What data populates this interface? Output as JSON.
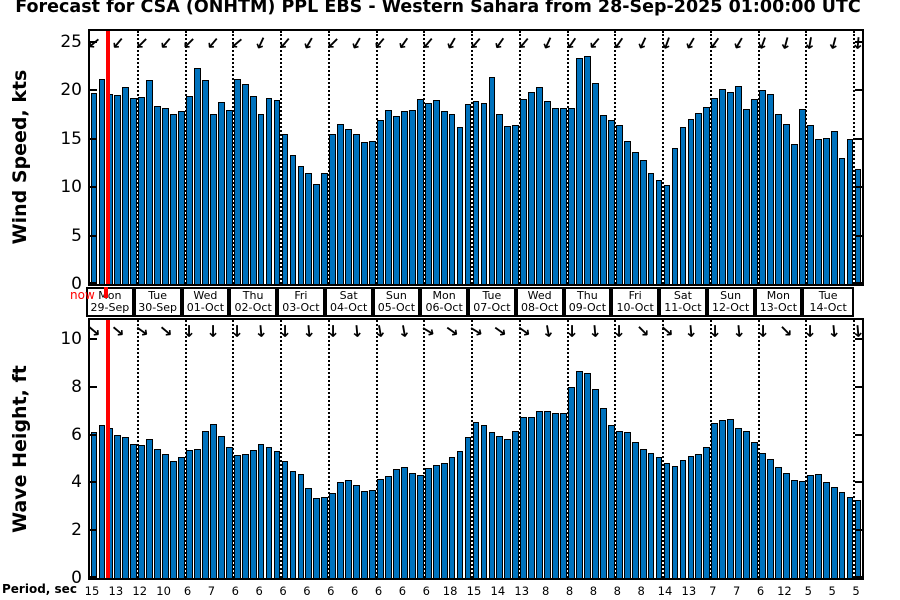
{
  "title": "Forecast for CSA (ONHTM) PPL EBS  - Western Sahara from 28-Sep-2025 01:00:00 UTC",
  "now_marker": {
    "label": "now",
    "color": "#FF0000"
  },
  "colors": {
    "bar_fill": "#0072BD",
    "bar_edge": "#000000",
    "grid": "#000000",
    "now_line": "#FF0000"
  },
  "date_row": {
    "days": [
      {
        "day": "Mon",
        "date": "29-Sep"
      },
      {
        "day": "Tue",
        "date": "30-Sep"
      },
      {
        "day": "Wed",
        "date": "01-Oct"
      },
      {
        "day": "Thu",
        "date": "02-Oct"
      },
      {
        "day": "Fri",
        "date": "03-Oct"
      },
      {
        "day": "Sat",
        "date": "04-Oct"
      },
      {
        "day": "Sun",
        "date": "05-Oct"
      },
      {
        "day": "Mon",
        "date": "06-Oct"
      },
      {
        "day": "Tue",
        "date": "07-Oct"
      },
      {
        "day": "Wed",
        "date": "08-Oct"
      },
      {
        "day": "Thu",
        "date": "09-Oct"
      },
      {
        "day": "Fri",
        "date": "10-Oct"
      },
      {
        "day": "Sat",
        "date": "11-Oct"
      },
      {
        "day": "Sun",
        "date": "12-Oct"
      },
      {
        "day": "Mon",
        "date": "13-Oct"
      },
      {
        "day": "Tue",
        "date": "14-Oct"
      }
    ]
  },
  "period_row": {
    "label": "Period, sec",
    "values": [
      15,
      13,
      12,
      10,
      6,
      7,
      6,
      6,
      6,
      6,
      6,
      6,
      6,
      6,
      6,
      18,
      15,
      14,
      13,
      8,
      8,
      8,
      8,
      8,
      14,
      13,
      7,
      7,
      6,
      12,
      5,
      5,
      5
    ]
  },
  "chart_data": [
    {
      "type": "bar",
      "name": "wind",
      "title": "",
      "xlabel": "",
      "ylabel": "Wind Speed, kts",
      "yticks": [
        0,
        5,
        10,
        15,
        20,
        25
      ],
      "ylim": [
        0,
        26.1
      ],
      "grid": "vertical-dotted-daily",
      "bar_interval_hours": 4,
      "values": [
        19.7,
        21.2,
        19.6,
        19.5,
        20.3,
        19.2,
        19.3,
        21.0,
        18.4,
        18.2,
        17.5,
        17.8,
        19.4,
        22.3,
        21.0,
        17.5,
        18.8,
        18.0,
        21.1,
        20.6,
        19.4,
        17.5,
        19.2,
        19.0,
        15.5,
        13.3,
        12.2,
        11.5,
        10.3,
        11.5,
        15.5,
        16.5,
        16.0,
        15.5,
        14.6,
        14.8,
        16.9,
        18.0,
        17.3,
        17.8,
        18.0,
        19.1,
        18.7,
        19.0,
        17.9,
        17.5,
        16.2,
        18.6,
        18.9,
        18.7,
        21.4,
        17.5,
        16.3,
        16.4,
        19.1,
        19.8,
        20.3,
        18.9,
        18.2,
        18.2,
        18.2,
        23.3,
        23.5,
        20.7,
        17.4,
        16.9,
        16.4,
        14.8,
        13.6,
        12.8,
        11.5,
        10.7,
        10.2,
        14.0,
        16.2,
        17.0,
        17.6,
        18.3,
        19.2,
        20.1,
        19.8,
        20.4,
        18.1,
        19.1,
        20.0,
        19.6,
        17.5,
        16.5,
        14.4,
        18.1,
        16.4,
        15.0,
        15.1,
        15.8,
        13.0,
        15.0,
        11.9
      ],
      "arrow_directions_deg": [
        140,
        130,
        135,
        130,
        135,
        130,
        140,
        115,
        130,
        120,
        135,
        120,
        130,
        125,
        130,
        120,
        130,
        125,
        130,
        115,
        125,
        130,
        125,
        115,
        110,
        120,
        125,
        120,
        110,
        105,
        100,
        105,
        95
      ]
    },
    {
      "type": "bar",
      "name": "wave",
      "title": "",
      "xlabel": "",
      "ylabel": "Wave Height, ft",
      "yticks": [
        0,
        2,
        4,
        6,
        8,
        10
      ],
      "ylim": [
        0,
        10.8
      ],
      "grid": "vertical-dotted-daily",
      "bar_interval_hours": 4,
      "values": [
        6.1,
        6.4,
        6.3,
        6.0,
        5.9,
        5.6,
        5.55,
        5.8,
        5.4,
        5.2,
        4.9,
        5.05,
        5.35,
        5.4,
        6.15,
        6.45,
        5.95,
        5.5,
        5.15,
        5.2,
        5.35,
        5.6,
        5.5,
        5.3,
        4.9,
        4.5,
        4.35,
        3.75,
        3.35,
        3.4,
        3.55,
        4.0,
        4.1,
        3.9,
        3.65,
        3.7,
        4.15,
        4.25,
        4.55,
        4.65,
        4.4,
        4.3,
        4.6,
        4.75,
        4.8,
        5.05,
        5.3,
        5.9,
        6.55,
        6.4,
        6.1,
        5.95,
        5.8,
        6.15,
        6.75,
        6.75,
        7.0,
        7.0,
        6.9,
        6.9,
        8.0,
        8.65,
        8.6,
        7.9,
        7.1,
        6.4,
        6.15,
        6.1,
        5.7,
        5.4,
        5.25,
        5.05,
        4.8,
        4.7,
        4.95,
        5.1,
        5.2,
        5.5,
        6.5,
        6.6,
        6.65,
        6.3,
        6.15,
        5.7,
        5.25,
        5.0,
        4.65,
        4.4,
        4.1,
        4.05,
        4.3,
        4.35,
        4.0,
        3.8,
        3.6,
        3.4,
        3.25
      ],
      "arrow_directions_deg": [
        40,
        40,
        35,
        40,
        90,
        90,
        90,
        85,
        90,
        85,
        90,
        85,
        80,
        80,
        30,
        35,
        30,
        35,
        35,
        80,
        90,
        85,
        90,
        45,
        40,
        85,
        90,
        85,
        90,
        45,
        90,
        85,
        85
      ]
    }
  ]
}
